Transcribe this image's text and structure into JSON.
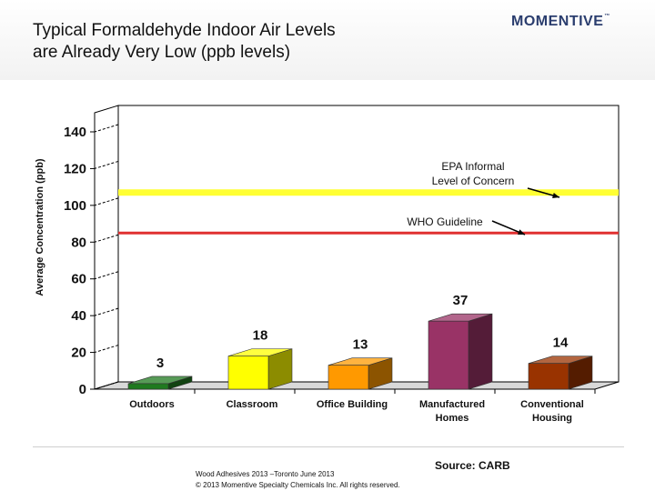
{
  "slide": {
    "title": "Typical Formaldehyde Indoor Air Levels\nare Already Very Low (ppb levels)",
    "logo_text": "MOMENTIVE",
    "logo_tm": "™",
    "source": "Source: CARB",
    "footer_line1": "Wood Adhesives 2013 –Toronto June 2013",
    "footer_line2": "© 2013 Momentive Specialty Chemicals Inc. All rights reserved."
  },
  "chart_data": {
    "type": "bar",
    "ylabel": "Average Concentration (ppb)",
    "ylim": [
      0,
      140
    ],
    "yticks": [
      0,
      20,
      40,
      60,
      80,
      100,
      120,
      140
    ],
    "categories": [
      "Outdoors",
      "Classroom",
      "Office Building",
      "Manufactured\nHomes",
      "Conventional\nHousing"
    ],
    "values": [
      3,
      18,
      13,
      37,
      14
    ],
    "bar_colors": [
      "#1f7a1f",
      "#ffff00",
      "#ff9900",
      "#993366",
      "#993300"
    ],
    "reference_lines": [
      {
        "label": "EPA Informal\nLevel of Concern",
        "value": 103,
        "color": "#ffff33"
      },
      {
        "label": "WHO Guideline",
        "value": 81,
        "color": "#e03030"
      }
    ],
    "grid": false
  }
}
